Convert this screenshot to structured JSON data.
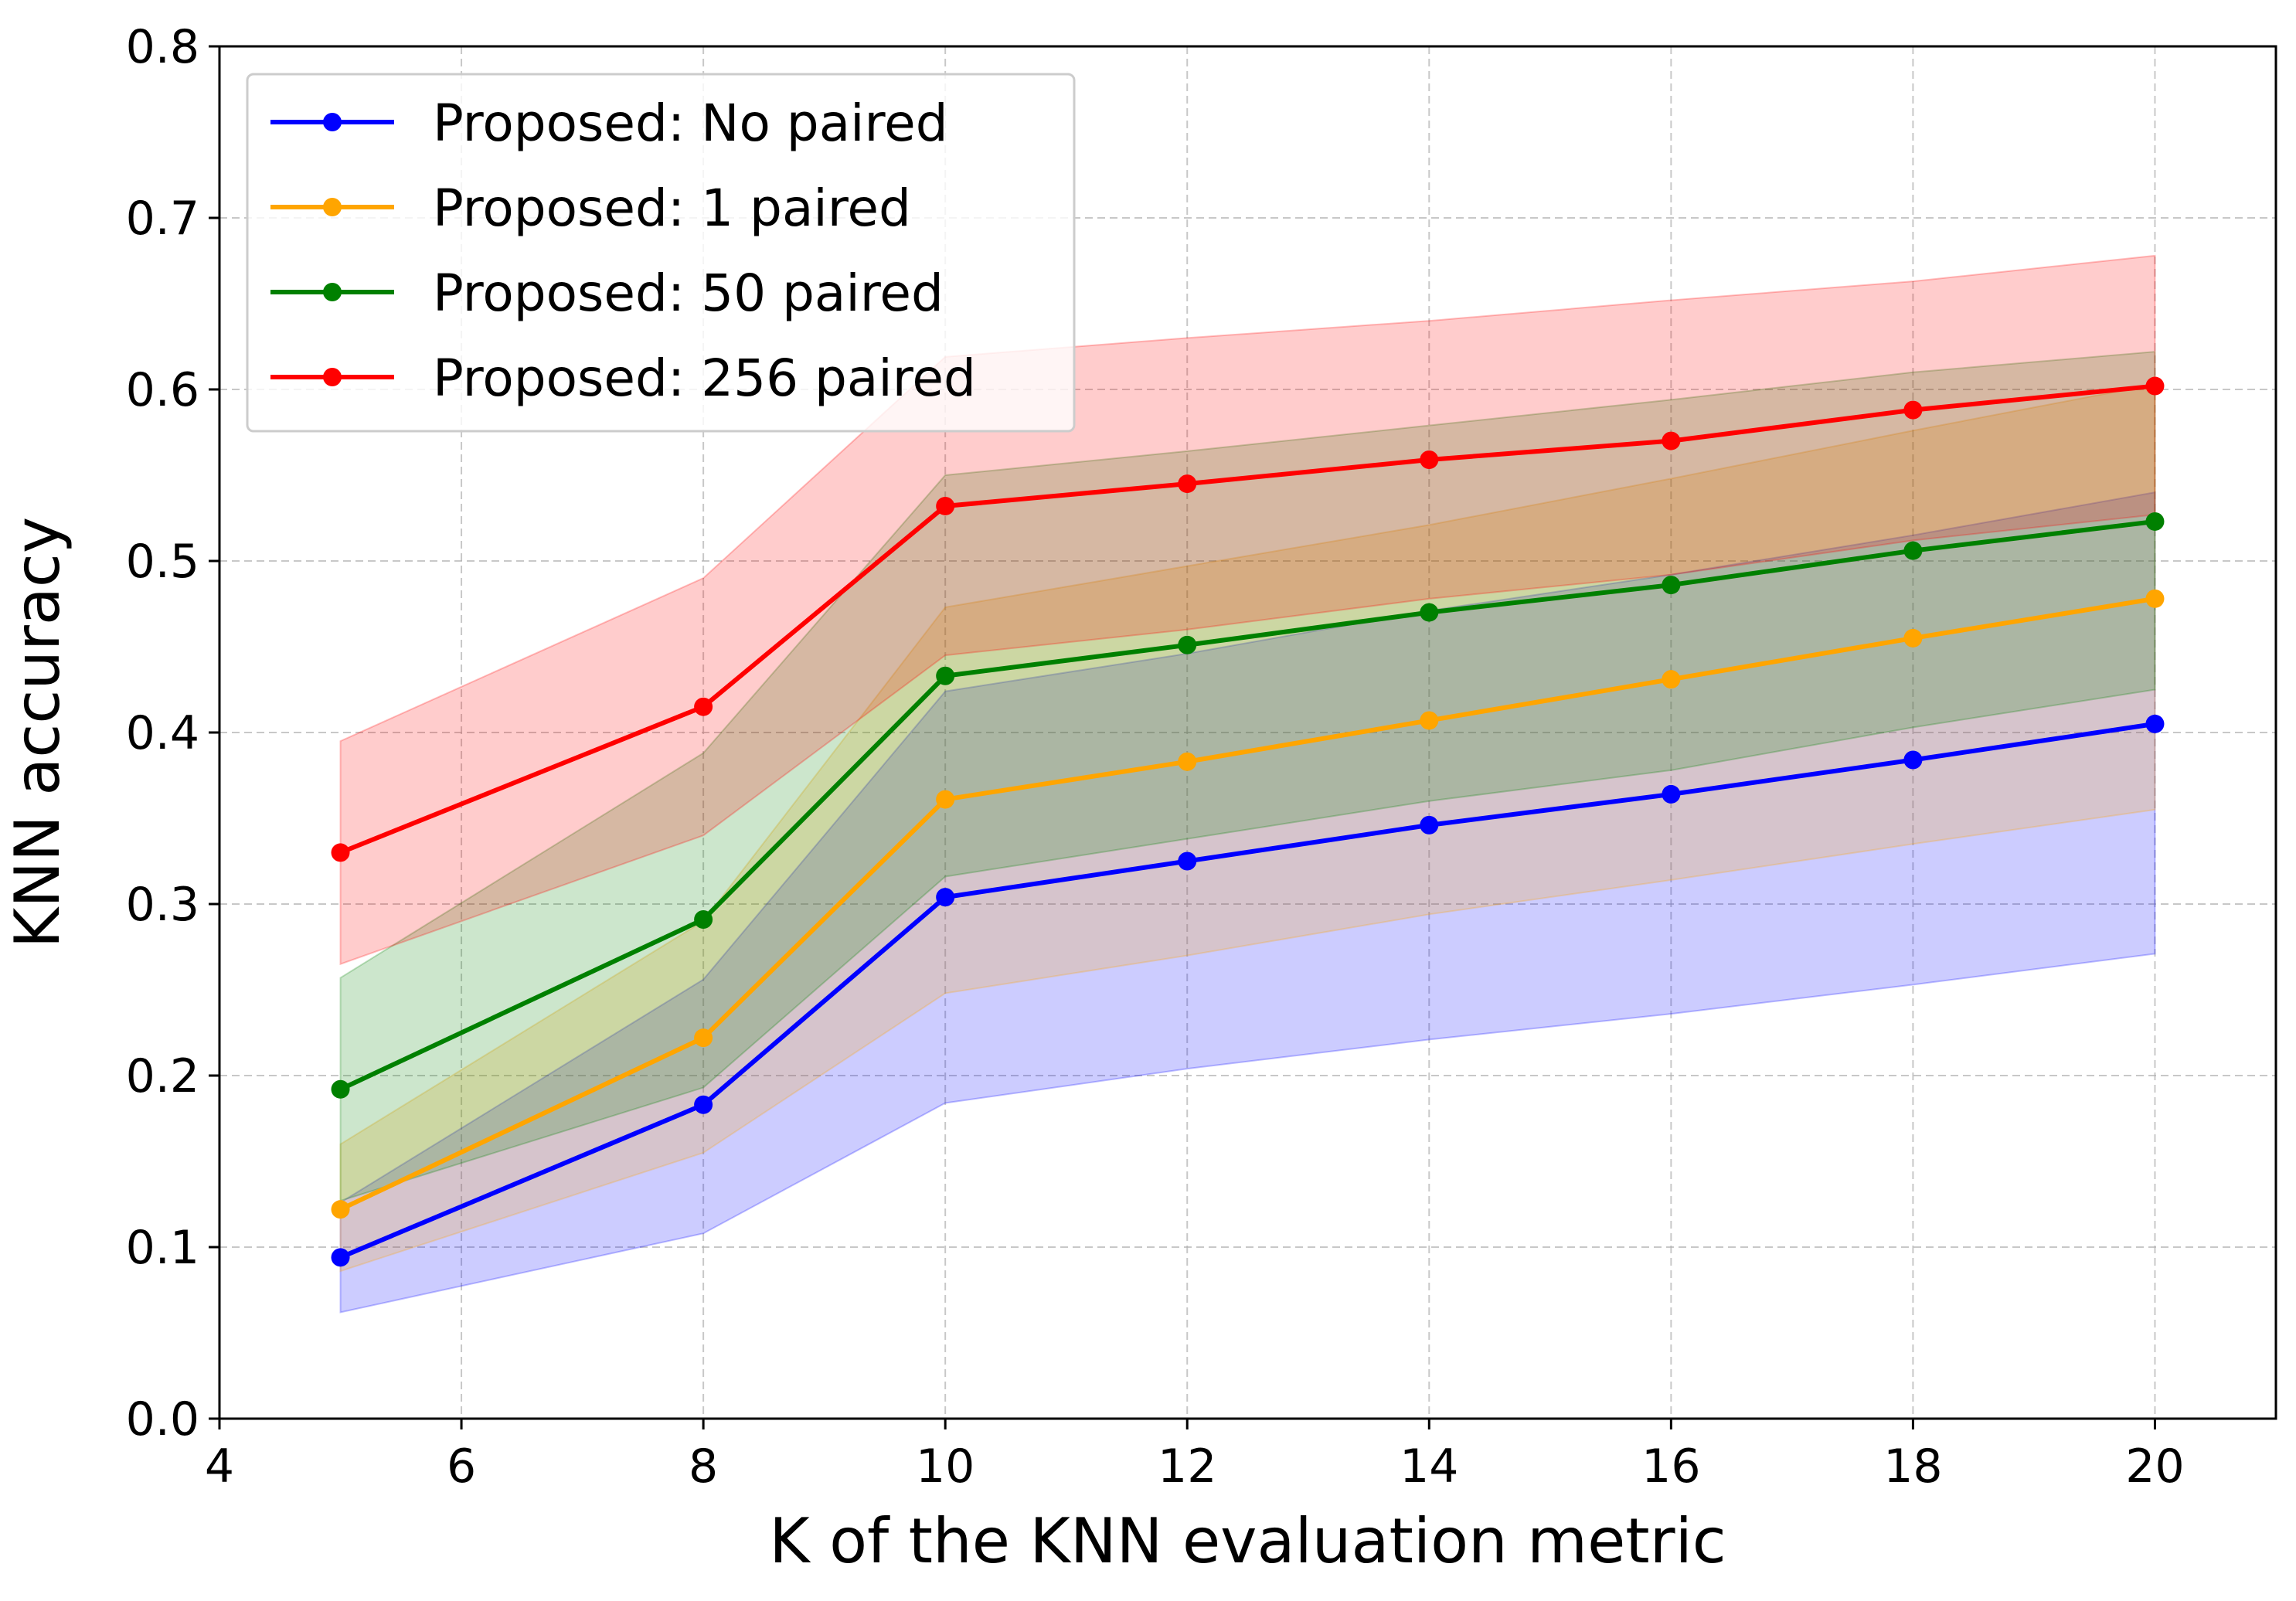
{
  "chart_data": {
    "type": "line",
    "title": "",
    "xlabel": "K of the KNN evaluation metric",
    "ylabel": "KNN accuracy",
    "xlim": [
      4,
      21
    ],
    "ylim": [
      0.0,
      0.8
    ],
    "xticks": [
      4,
      6,
      8,
      10,
      12,
      14,
      16,
      18,
      20
    ],
    "yticks": [
      0.0,
      0.1,
      0.2,
      0.3,
      0.4,
      0.5,
      0.6,
      0.7,
      0.8
    ],
    "xtick_labels": [
      "4",
      "6",
      "8",
      "10",
      "12",
      "14",
      "16",
      "18",
      "20"
    ],
    "ytick_labels": [
      "0.0",
      "0.1",
      "0.2",
      "0.3",
      "0.4",
      "0.5",
      "0.6",
      "0.7",
      "0.8"
    ],
    "grid": true,
    "legend_position": "top-left",
    "x": [
      5,
      8,
      10,
      12,
      14,
      16,
      18,
      20
    ],
    "series": [
      {
        "name": "Proposed: No paired",
        "color": "#0000ff",
        "values": [
          0.094,
          0.183,
          0.304,
          0.325,
          0.346,
          0.364,
          0.384,
          0.405
        ],
        "lower": [
          0.062,
          0.108,
          0.184,
          0.204,
          0.221,
          0.236,
          0.253,
          0.271
        ],
        "upper": [
          0.126,
          0.256,
          0.424,
          0.446,
          0.471,
          0.492,
          0.515,
          0.54
        ]
      },
      {
        "name": "Proposed: 1 paired",
        "color": "#ffa500",
        "values": [
          0.122,
          0.222,
          0.361,
          0.383,
          0.407,
          0.431,
          0.455,
          0.478
        ],
        "lower": [
          0.086,
          0.155,
          0.248,
          0.27,
          0.294,
          0.314,
          0.335,
          0.355
        ],
        "upper": [
          0.16,
          0.29,
          0.473,
          0.497,
          0.521,
          0.548,
          0.576,
          0.603
        ]
      },
      {
        "name": "Proposed: 50 paired",
        "color": "#008000",
        "values": [
          0.192,
          0.291,
          0.433,
          0.451,
          0.47,
          0.486,
          0.506,
          0.523
        ],
        "lower": [
          0.127,
          0.193,
          0.316,
          0.338,
          0.36,
          0.378,
          0.403,
          0.425
        ],
        "upper": [
          0.257,
          0.388,
          0.55,
          0.564,
          0.579,
          0.594,
          0.61,
          0.622
        ]
      },
      {
        "name": "Proposed: 256 paired",
        "color": "#ff0000",
        "values": [
          0.33,
          0.415,
          0.532,
          0.545,
          0.559,
          0.57,
          0.588,
          0.602
        ],
        "lower": [
          0.265,
          0.34,
          0.445,
          0.46,
          0.478,
          0.492,
          0.512,
          0.527
        ],
        "upper": [
          0.395,
          0.49,
          0.619,
          0.63,
          0.64,
          0.652,
          0.663,
          0.678
        ]
      }
    ]
  }
}
